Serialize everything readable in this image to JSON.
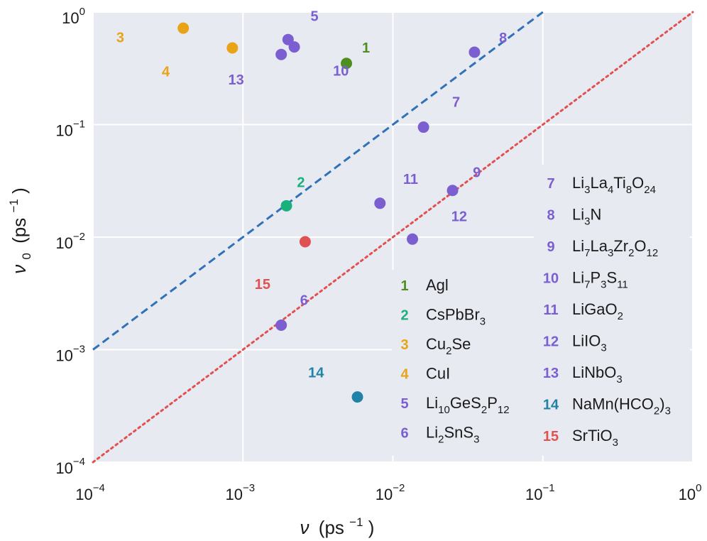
{
  "chart_data": {
    "type": "scatter",
    "x_scale": "log",
    "y_scale": "log",
    "xlim": [
      0.0001,
      1
    ],
    "ylim": [
      0.0001,
      1
    ],
    "grid": true,
    "xlabel": {
      "symbol": "ν",
      "unit": "(ps",
      "unit_exp": "−1",
      "close": ")"
    },
    "ylabel": {
      "symbol": "ν",
      "subscript": "0",
      "unit": "(ps",
      "unit_exp": "−1",
      "close": ")"
    },
    "x_ticks": [
      {
        "value": 0.0001,
        "base": "10",
        "exp": "−4"
      },
      {
        "value": 0.001,
        "base": "10",
        "exp": "−3"
      },
      {
        "value": 0.01,
        "base": "10",
        "exp": "−2"
      },
      {
        "value": 0.1,
        "base": "10",
        "exp": "−1"
      },
      {
        "value": 1,
        "base": "10",
        "exp": "0"
      }
    ],
    "y_ticks": [
      {
        "value": 0.0001,
        "base": "10",
        "exp": "−4"
      },
      {
        "value": 0.001,
        "base": "10",
        "exp": "−3"
      },
      {
        "value": 0.01,
        "base": "10",
        "exp": "−2"
      },
      {
        "value": 0.1,
        "base": "10",
        "exp": "−1"
      },
      {
        "value": 1,
        "base": "10",
        "exp": "0"
      }
    ],
    "reference_lines": [
      {
        "name": "dashed",
        "style": "dashed",
        "color": "#2f72b8",
        "factor": 10
      },
      {
        "name": "dotted",
        "style": "dotted",
        "color": "#e05151",
        "factor": 1
      }
    ],
    "points": [
      {
        "id": "1",
        "x": 0.0049,
        "y": 0.35,
        "color": "#4d8f1e",
        "label_dx": 1.35,
        "label_dy": 1.38
      },
      {
        "id": "2",
        "x": 0.00195,
        "y": 0.019,
        "color": "#1ab07a",
        "label_dx": 1.25,
        "label_dy": 1.62
      },
      {
        "id": "3",
        "x": 0.0004,
        "y": 0.72,
        "color": "#e8a317",
        "label_dx": 0.38,
        "label_dy": 0.83
      },
      {
        "id": "4",
        "x": 0.00085,
        "y": 0.48,
        "color": "#e8a317",
        "label_dx": 0.36,
        "label_dy": 0.62
      },
      {
        "id": "5a",
        "x": 0.002,
        "y": 0.57,
        "color": "#7b5fd1",
        "label": "5",
        "label_dx": 1.5,
        "label_dy": 1.62
      },
      {
        "id": "5b",
        "x": 0.0022,
        "y": 0.49,
        "color": "#7b5fd1"
      },
      {
        "id": "10",
        "x": 0.0018,
        "y": 0.42,
        "color": "#7b5fd1",
        "label_dx": 2.5,
        "label_dy": 0.72
      },
      {
        "id": "13",
        "x": 0.0018,
        "y": 0.42,
        "color": "#7b5fd1",
        "hidden_marker": true,
        "label_dx": 0.5,
        "label_dy": 0.6
      },
      {
        "id": "6",
        "x": 0.0018,
        "y": 0.00165,
        "color": "#7b5fd1",
        "label_dx": 1.42,
        "label_dy": 1.68
      },
      {
        "id": "7",
        "x": 0.016,
        "y": 0.095,
        "color": "#7b5fd1",
        "label_dx": 1.65,
        "label_dy": 1.68
      },
      {
        "id": "8",
        "x": 0.035,
        "y": 0.44,
        "color": "#7b5fd1",
        "label_dx": 1.55,
        "label_dy": 1.35
      },
      {
        "id": "9",
        "x": 0.025,
        "y": 0.026,
        "color": "#7b5fd1",
        "label_dx": 1.45,
        "label_dy": 1.45
      },
      {
        "id": "11",
        "x": 0.0082,
        "y": 0.02,
        "color": "#7b5fd1",
        "label_dx": 1.6,
        "label_dy": 1.65
      },
      {
        "id": "12",
        "x": 0.0135,
        "y": 0.0096,
        "color": "#7b5fd1",
        "label_dx": 2.05,
        "label_dy": 1.6
      },
      {
        "id": "14",
        "x": 0.0058,
        "y": 0.00038,
        "color": "#1f82a6",
        "label_dx": 0.53,
        "label_dy": 1.65
      },
      {
        "id": "15",
        "x": 0.0026,
        "y": 0.0091,
        "color": "#e05151",
        "label_dx": 0.52,
        "label_dy": 0.42
      }
    ],
    "legend_left": [
      {
        "num": "1",
        "color": "#4d8f1e",
        "parts": [
          [
            "Agl",
            ""
          ]
        ]
      },
      {
        "num": "2",
        "color": "#1ab07a",
        "parts": [
          [
            "CsPbBr",
            ""
          ],
          [
            "3",
            "sub"
          ]
        ]
      },
      {
        "num": "3",
        "color": "#e8a317",
        "parts": [
          [
            "Cu",
            ""
          ],
          [
            "2",
            "sub"
          ],
          [
            "Se",
            ""
          ]
        ]
      },
      {
        "num": "4",
        "color": "#e8a317",
        "parts": [
          [
            "CuI",
            ""
          ]
        ]
      },
      {
        "num": "5",
        "color": "#7b5fd1",
        "parts": [
          [
            "Li",
            ""
          ],
          [
            "10",
            "sub"
          ],
          [
            "GeS",
            ""
          ],
          [
            "2",
            "sub"
          ],
          [
            "P",
            ""
          ],
          [
            "12",
            "sub"
          ]
        ]
      },
      {
        "num": "6",
        "color": "#7b5fd1",
        "parts": [
          [
            "Li",
            ""
          ],
          [
            "2",
            "sub"
          ],
          [
            "SnS",
            ""
          ],
          [
            "3",
            "sub"
          ]
        ]
      }
    ],
    "legend_right": [
      {
        "num": "7",
        "color": "#7b5fd1",
        "parts": [
          [
            "Li",
            ""
          ],
          [
            "3",
            "sub"
          ],
          [
            "La",
            ""
          ],
          [
            "4",
            "sub"
          ],
          [
            "Ti",
            ""
          ],
          [
            "8",
            "sub"
          ],
          [
            "O",
            ""
          ],
          [
            "24",
            "sub"
          ]
        ]
      },
      {
        "num": "8",
        "color": "#7b5fd1",
        "parts": [
          [
            "Li",
            ""
          ],
          [
            "3",
            "sub"
          ],
          [
            "N",
            ""
          ]
        ]
      },
      {
        "num": "9",
        "color": "#7b5fd1",
        "parts": [
          [
            "Li",
            ""
          ],
          [
            "7",
            "sub"
          ],
          [
            "La",
            ""
          ],
          [
            "3",
            "sub"
          ],
          [
            "Zr",
            ""
          ],
          [
            "2",
            "sub"
          ],
          [
            "O",
            ""
          ],
          [
            "12",
            "sub"
          ]
        ]
      },
      {
        "num": "10",
        "color": "#7b5fd1",
        "parts": [
          [
            "Li",
            ""
          ],
          [
            "7",
            "sub"
          ],
          [
            "P",
            ""
          ],
          [
            "3",
            "sub"
          ],
          [
            "S",
            ""
          ],
          [
            "11",
            "sub"
          ]
        ]
      },
      {
        "num": "11",
        "color": "#7b5fd1",
        "parts": [
          [
            "LiGaO",
            ""
          ],
          [
            "2",
            "sub"
          ]
        ]
      },
      {
        "num": "12",
        "color": "#7b5fd1",
        "parts": [
          [
            "LiIO",
            ""
          ],
          [
            "3",
            "sub"
          ]
        ]
      },
      {
        "num": "13",
        "color": "#7b5fd1",
        "parts": [
          [
            "LiNbO",
            ""
          ],
          [
            "3",
            "sub"
          ]
        ]
      },
      {
        "num": "14",
        "color": "#1f82a6",
        "parts": [
          [
            "NaMn(HCO",
            ""
          ],
          [
            "2",
            "sub"
          ],
          [
            ")",
            ""
          ],
          [
            "3",
            "sub"
          ]
        ]
      },
      {
        "num": "15",
        "color": "#e05151",
        "parts": [
          [
            "SrTiO",
            ""
          ],
          [
            "3",
            "sub"
          ]
        ]
      }
    ]
  },
  "colors": {
    "plot_background": "#e8eaf2",
    "grid": "#ffffff"
  }
}
